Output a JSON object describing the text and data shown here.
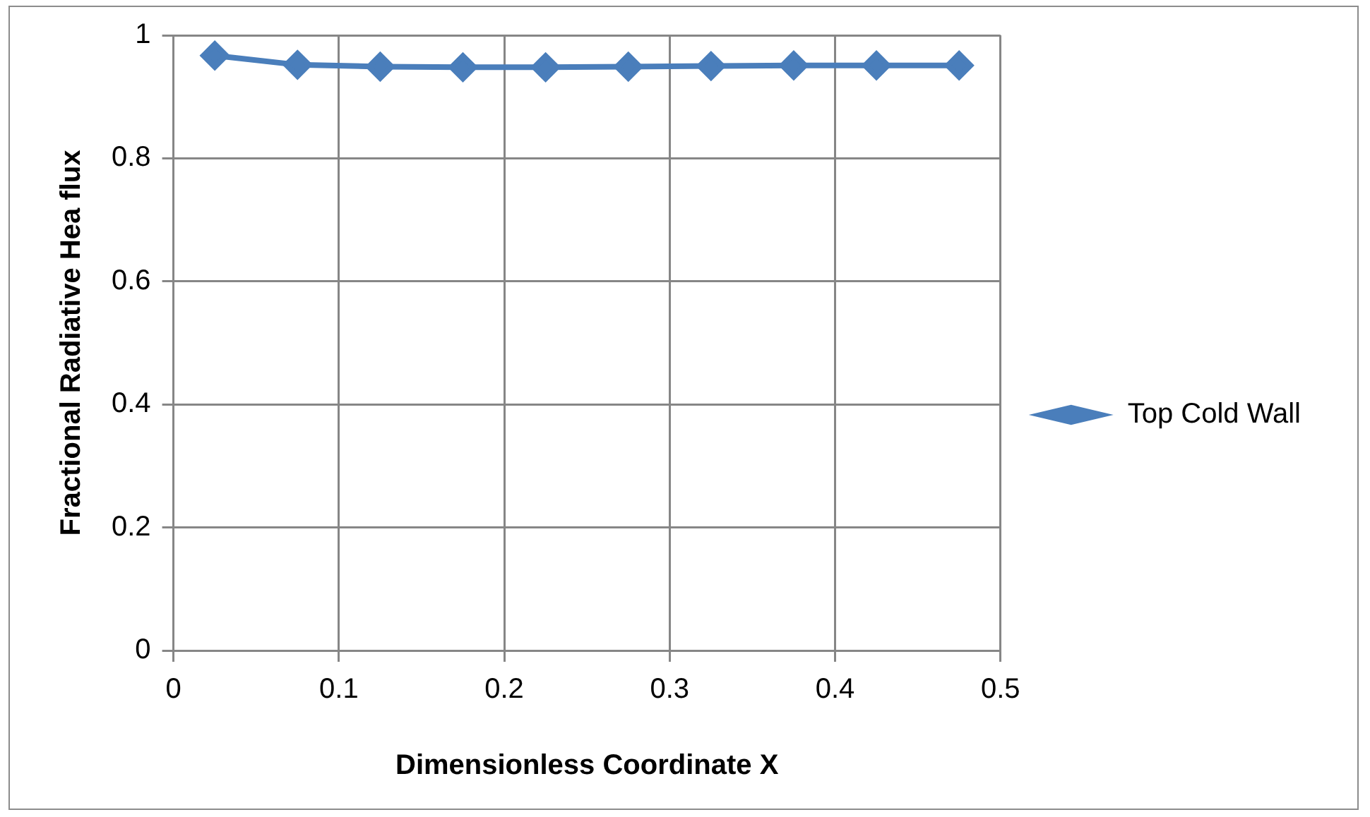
{
  "chart_data": {
    "type": "line",
    "xlabel": "Dimensionless Coordinate X",
    "ylabel": "Fractional Radiative Hea flux",
    "x": [
      0.025,
      0.075,
      0.125,
      0.175,
      0.225,
      0.275,
      0.325,
      0.375,
      0.425,
      0.475
    ],
    "series": [
      {
        "name": "Top Cold Wall",
        "color": "#4a7ebb",
        "values": [
          0.967,
          0.952,
          0.949,
          0.948,
          0.948,
          0.949,
          0.95,
          0.951,
          0.951,
          0.951
        ]
      }
    ],
    "xlim": [
      0,
      0.5
    ],
    "xticks": [
      0,
      0.1,
      0.2,
      0.3,
      0.4,
      0.5
    ],
    "ylim": [
      0,
      1
    ],
    "yticks": [
      0,
      0.2,
      0.4,
      0.6,
      0.8,
      1
    ],
    "grid": true,
    "legend": "right",
    "marker": "diamond",
    "line_style": "solid"
  }
}
